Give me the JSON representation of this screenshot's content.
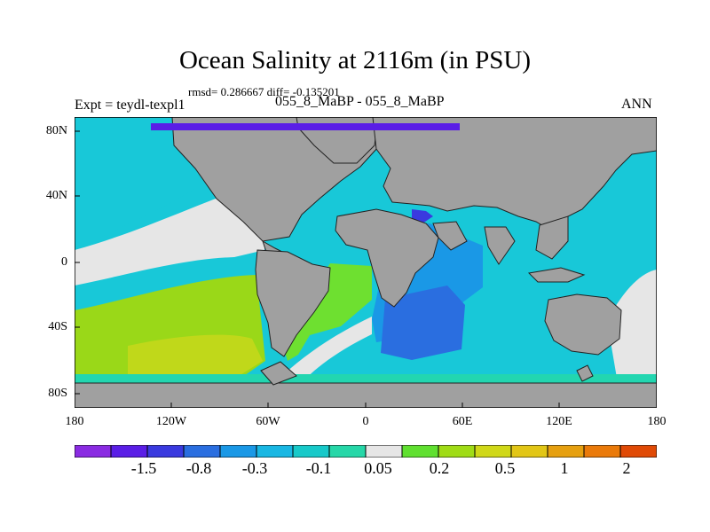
{
  "title": "Ocean Salinity at 2116m (in PSU)",
  "stats": "rmsd= 0.286667 diff= -0.135201",
  "expt_label": "Expt = teydl-texpl1",
  "diff_label": "055_8_MaBP - 055_8_MaBP",
  "season": "ANN",
  "lat_ticks": [
    "80N",
    "40N",
    "0",
    "40S",
    "80S"
  ],
  "lon_ticks": [
    "180",
    "120W",
    "60W",
    "0",
    "60E",
    "120E",
    "180"
  ],
  "colorbar": {
    "labels": [
      "-1.5",
      "-0.8",
      "-0.3",
      "-0.1",
      "0.05",
      "0.2",
      "0.5",
      "1",
      "2"
    ],
    "colors": [
      "#8a2be2",
      "#5a1ee6",
      "#3a3adf",
      "#2a6ee0",
      "#1a98e6",
      "#19b7e3",
      "#17c9c9",
      "#26d7a8",
      "#e6e6e6",
      "#60e030",
      "#a0dc16",
      "#d0d818",
      "#e2c616",
      "#e6a010",
      "#ea7a0a",
      "#e04a06"
    ]
  },
  "map_colors": {
    "land": "#a0a0a0",
    "near_zero": "#e6e6e6",
    "cyan": "#18c8d8",
    "teal": "#22d6b0",
    "lightblue": "#1a98e6",
    "blue": "#2a6ee0",
    "darkblue": "#3a3adf",
    "purple": "#5a1ee6",
    "green": "#9ad818",
    "yellowgreen": "#c0d81a",
    "brightgreen": "#6ee030"
  }
}
